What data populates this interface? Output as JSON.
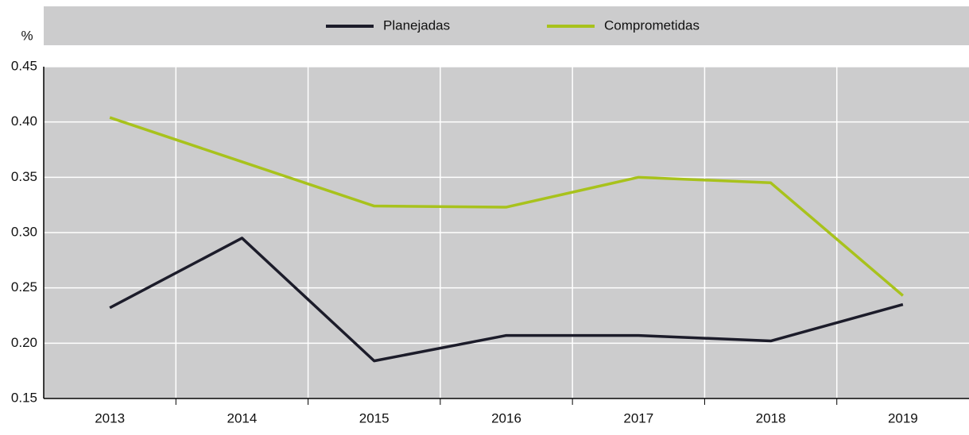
{
  "chart_data": {
    "type": "line",
    "ylabel": "%",
    "categories": [
      "2013",
      "2014",
      "2015",
      "2016",
      "2017",
      "2018",
      "2019"
    ],
    "series": [
      {
        "name": "Planejadas",
        "color": "#1c1c2a",
        "values": [
          0.232,
          0.295,
          0.184,
          0.207,
          0.207,
          0.202,
          0.235
        ]
      },
      {
        "name": "Comprometidas",
        "color": "#a8c21c",
        "values": [
          0.404,
          0.364,
          0.324,
          0.323,
          0.35,
          0.345,
          0.243
        ]
      }
    ],
    "ylim": [
      0.15,
      0.45
    ],
    "yticks": [
      0.15,
      {
        "value": 0.2,
        "label": "0.20"
      },
      0.25,
      {
        "value": 0.3,
        "label": "0.30"
      },
      0.35,
      {
        "value": 0.4,
        "label": "0.40"
      },
      0.45
    ],
    "grid": true
  }
}
